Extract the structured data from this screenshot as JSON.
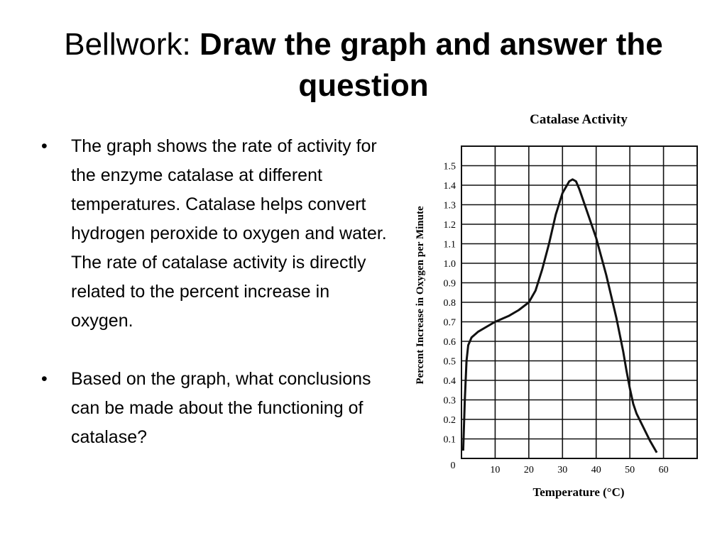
{
  "slide": {
    "title_plain": "Bellwork:",
    "title_bold": "Draw the graph and answer the question",
    "bullets": [
      "The graph shows the rate of activity for the enzyme catalase at different temperatures. Catalase helps convert hydrogen peroxide to oxygen and water. The rate of catalase activity is directly related to the percent increase in oxygen.",
      "Based on the graph, what conclusions can be made about the functioning of catalase?"
    ],
    "bullet_symbol": "•"
  },
  "chart_data": {
    "type": "line",
    "title": "Catalase Activity",
    "xlabel": "Temperature (°C)",
    "ylabel": "Percent Increase in Oxygen per Minute",
    "xlim": [
      0,
      70
    ],
    "ylim": [
      0,
      1.6
    ],
    "xticks": [
      0,
      10,
      20,
      30,
      40,
      50,
      60
    ],
    "yticks": [
      0.1,
      0.2,
      0.3,
      0.4,
      0.5,
      0.6,
      0.7,
      0.8,
      0.9,
      1.0,
      1.1,
      1.2,
      1.3,
      1.4,
      1.5
    ],
    "x_origin_label": "0",
    "grid": true,
    "line_color": "#111111",
    "series": [
      {
        "x": [
          0.5,
          1,
          1.5,
          2,
          3,
          5,
          8,
          10,
          14,
          17,
          20,
          22,
          24,
          26,
          28,
          30,
          32,
          33,
          34,
          35,
          37,
          40,
          43,
          46,
          48,
          49,
          50,
          51,
          52,
          54,
          56,
          58
        ],
        "y": [
          0.04,
          0.3,
          0.5,
          0.58,
          0.62,
          0.65,
          0.68,
          0.7,
          0.73,
          0.76,
          0.8,
          0.86,
          0.97,
          1.1,
          1.25,
          1.36,
          1.42,
          1.43,
          1.42,
          1.38,
          1.28,
          1.13,
          0.94,
          0.72,
          0.55,
          0.45,
          0.36,
          0.28,
          0.23,
          0.16,
          0.09,
          0.03
        ]
      }
    ]
  }
}
